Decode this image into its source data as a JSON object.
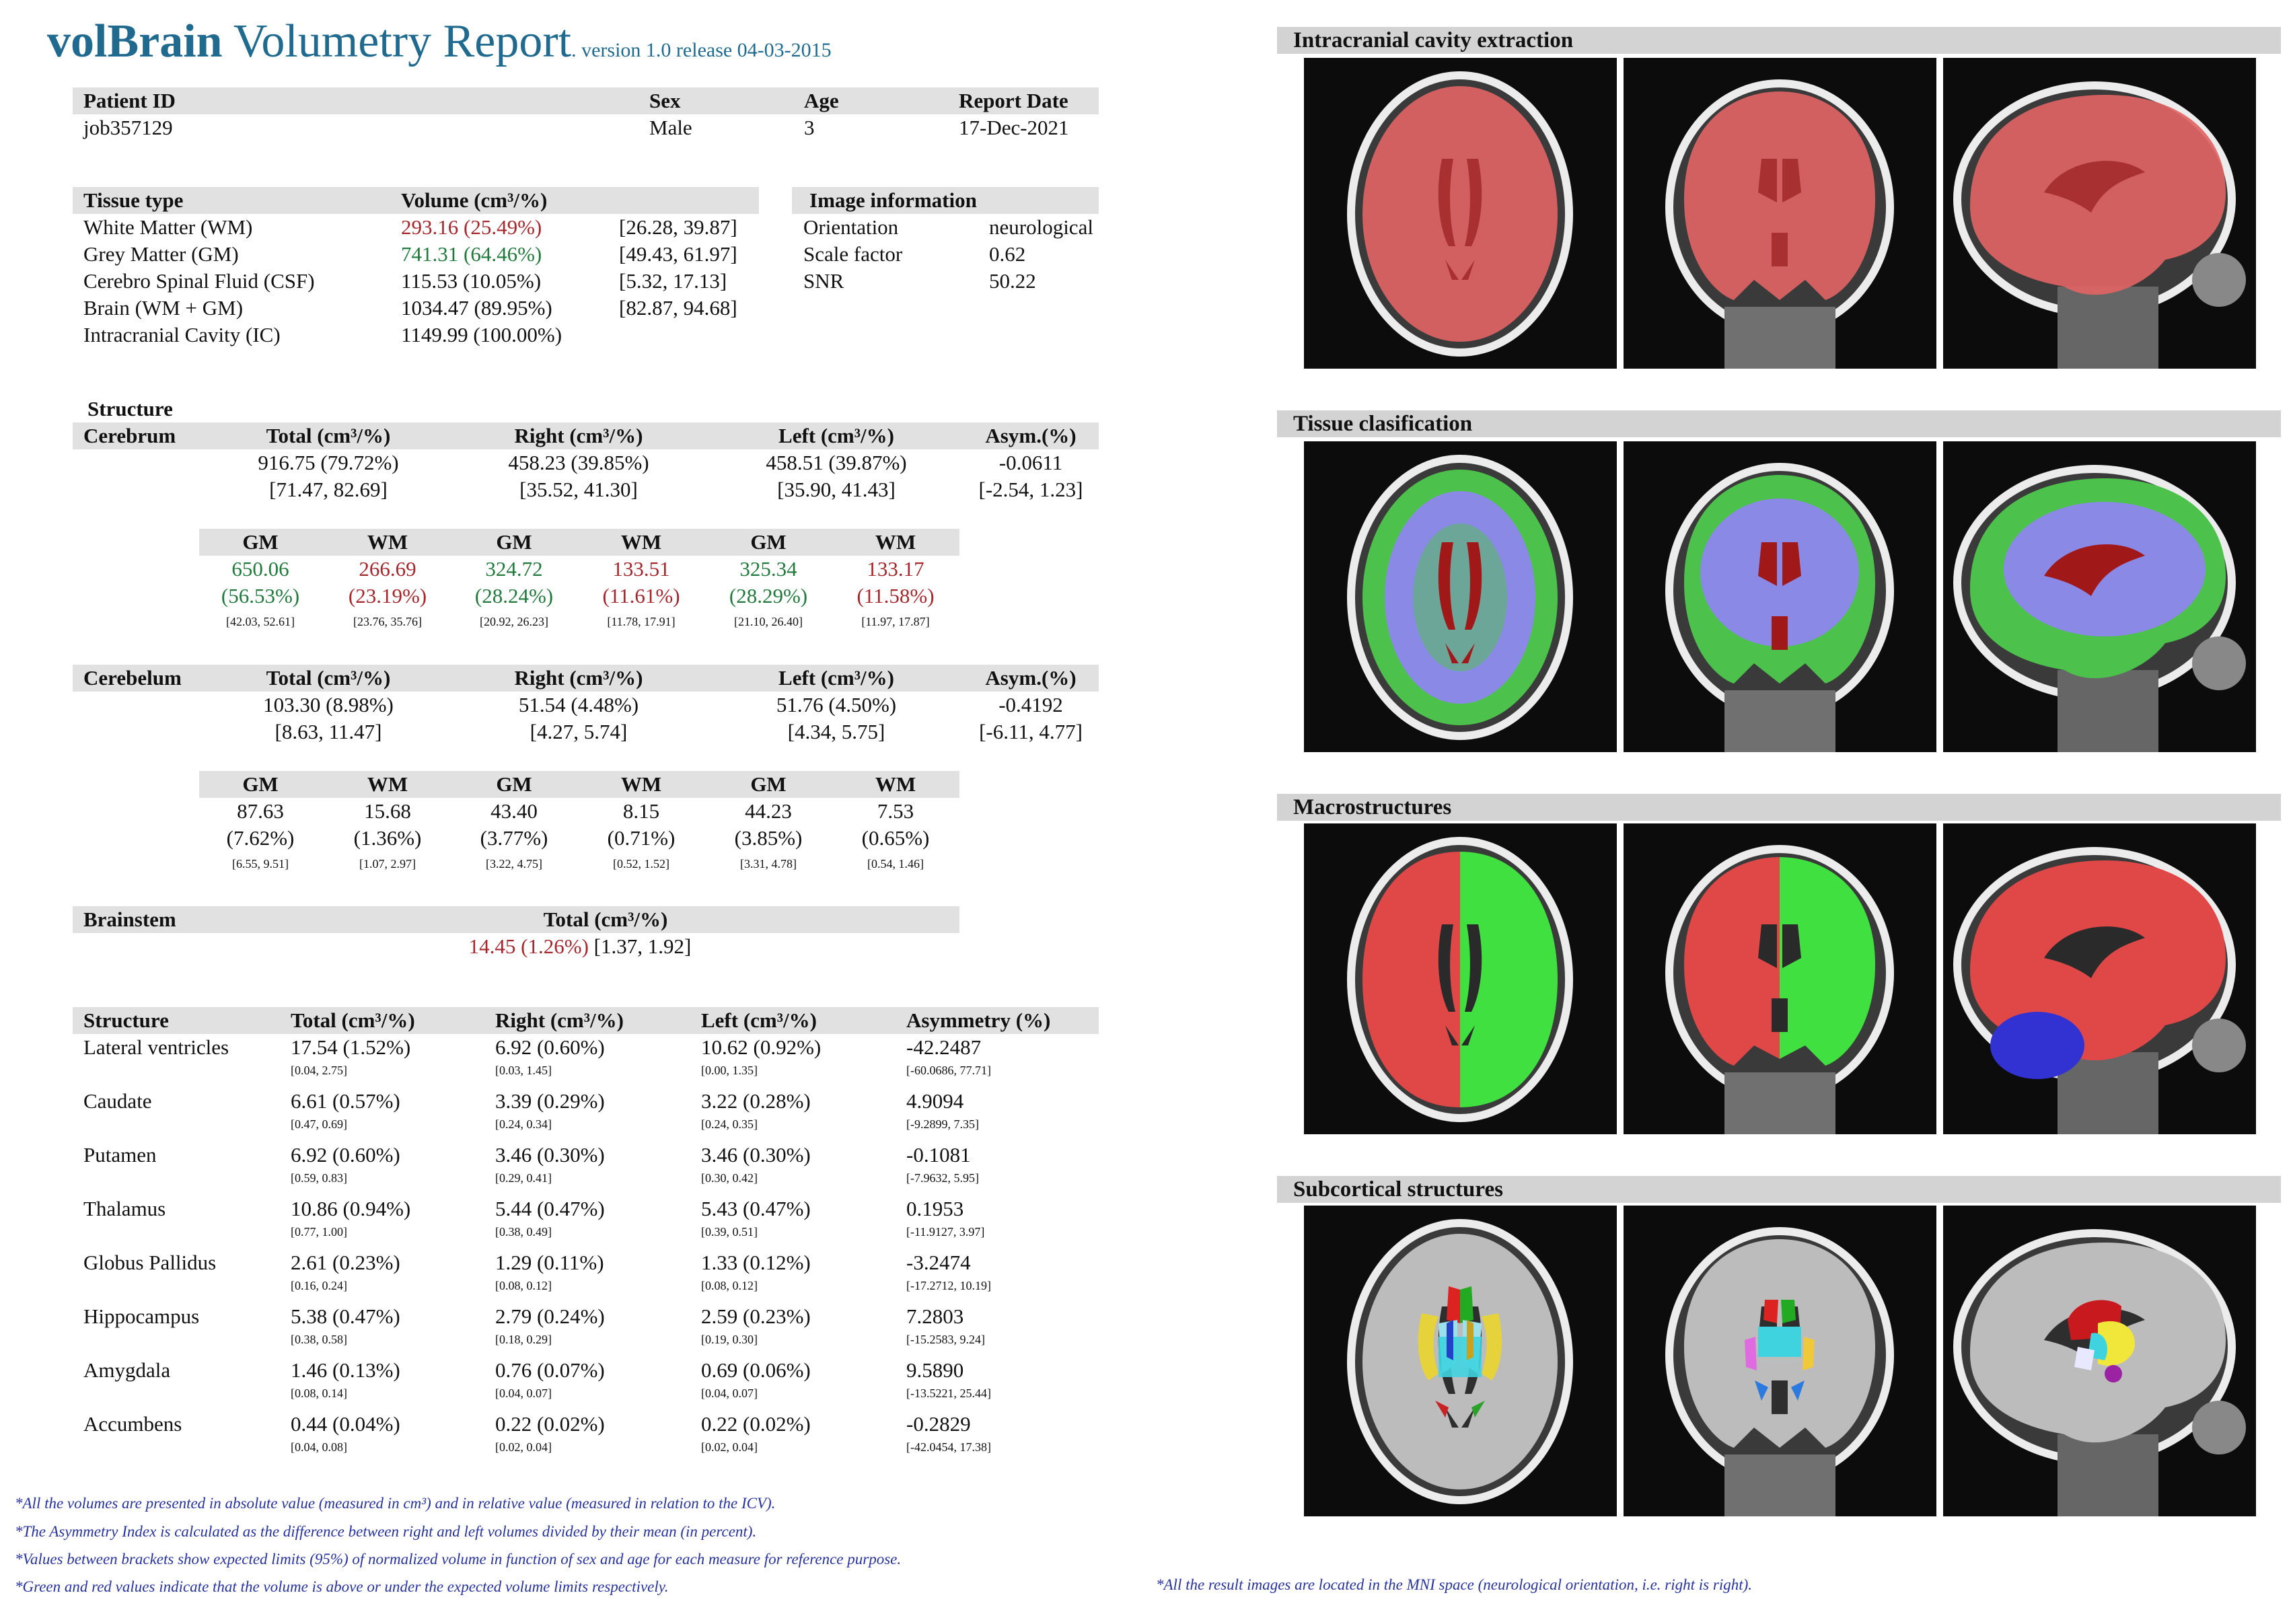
{
  "header": {
    "brand": "volBrain",
    "title": " Volumetry Report",
    "version": ". version 1.0 release 04-03-2015"
  },
  "patient": {
    "labels": [
      "Patient ID",
      "Sex",
      "Age",
      "Report Date"
    ],
    "values": [
      "job357129",
      "Male",
      "3",
      "17-Dec-2021"
    ]
  },
  "tissue": {
    "header_type": "Tissue type",
    "header_volume": "Volume (cm³/%)",
    "rows": [
      {
        "name": "White Matter (WM)",
        "value": "293.16 (25.49%)",
        "range": "[26.28, 39.87]",
        "status": "red"
      },
      {
        "name": "Grey Matter (GM)",
        "value": "741.31 (64.46%)",
        "range": "[49.43, 61.97]",
        "status": "green"
      },
      {
        "name": "Cerebro Spinal Fluid (CSF)",
        "value": "115.53 (10.05%)",
        "range": "[5.32, 17.13]",
        "status": "normal"
      },
      {
        "name": "Brain (WM + GM)",
        "value": "1034.47 (89.95%)",
        "range": "[82.87, 94.68]",
        "status": "normal"
      },
      {
        "name": "Intracranial Cavity (IC)",
        "value": "1149.99 (100.00%)",
        "range": "",
        "status": "normal"
      }
    ]
  },
  "image_info": {
    "header": "Image information",
    "rows": [
      {
        "label": "Orientation",
        "value": "neurological"
      },
      {
        "label": "Scale factor",
        "value": "0.62"
      },
      {
        "label": "SNR",
        "value": "50.22"
      }
    ]
  },
  "structure_label": "Structure",
  "cerebrum": {
    "name": "Cerebrum",
    "headers": [
      "Total (cm³/%)",
      "Right (cm³/%)",
      "Left (cm³/%)",
      "Asym.(%)"
    ],
    "values": [
      "916.75 (79.72%)",
      "458.23 (39.85%)",
      "458.51 (39.87%)",
      "-0.0611"
    ],
    "ranges": [
      "[71.47, 82.69]",
      "[35.52, 41.30]",
      "[35.90, 41.43]",
      "[-2.54, 1.23]"
    ],
    "sub": {
      "headers": [
        "GM",
        "WM",
        "GM",
        "WM",
        "GM",
        "WM"
      ],
      "values": [
        "650.06",
        "266.69",
        "324.72",
        "133.51",
        "325.34",
        "133.17"
      ],
      "pcts": [
        "(56.53%)",
        "(23.19%)",
        "(28.24%)",
        "(11.61%)",
        "(28.29%)",
        "(11.58%)"
      ],
      "ranges": [
        "[42.03, 52.61]",
        "[23.76, 35.76]",
        "[20.92, 26.23]",
        "[11.78, 17.91]",
        "[21.10, 26.40]",
        "[11.97, 17.87]"
      ],
      "status": [
        "green",
        "red",
        "green",
        "red",
        "green",
        "red"
      ]
    }
  },
  "cerebelum": {
    "name": "Cerebelum",
    "headers": [
      "Total (cm³/%)",
      "Right (cm³/%)",
      "Left (cm³/%)",
      "Asym.(%)"
    ],
    "values": [
      "103.30 (8.98%)",
      "51.54 (4.48%)",
      "51.76 (4.50%)",
      "-0.4192"
    ],
    "ranges": [
      "[8.63, 11.47]",
      "[4.27, 5.74]",
      "[4.34, 5.75]",
      "[-6.11, 4.77]"
    ],
    "sub": {
      "headers": [
        "GM",
        "WM",
        "GM",
        "WM",
        "GM",
        "WM"
      ],
      "values": [
        "87.63",
        "15.68",
        "43.40",
        "8.15",
        "44.23",
        "7.53"
      ],
      "pcts": [
        "(7.62%)",
        "(1.36%)",
        "(3.77%)",
        "(0.71%)",
        "(3.85%)",
        "(0.65%)"
      ],
      "ranges": [
        "[6.55, 9.51]",
        "[1.07, 2.97]",
        "[3.22, 4.75]",
        "[0.52, 1.52]",
        "[3.31, 4.78]",
        "[0.54, 1.46]"
      ]
    }
  },
  "brainstem": {
    "name": "Brainstem",
    "header": "Total (cm³/%)",
    "value": "14.45 (1.26%)",
    "range": " [1.37, 1.92]"
  },
  "subcortical": {
    "headers": [
      "Structure",
      "Total (cm³/%)",
      "Right (cm³/%)",
      "Left (cm³/%)",
      "Asymmetry (%)"
    ],
    "rows": [
      {
        "name": "Lateral ventricles",
        "total": "17.54 (1.52%)",
        "right": "6.92 (0.60%)",
        "left": "10.62 (0.92%)",
        "asym": "-42.2487",
        "r_total": "[0.04, 2.75]",
        "r_right": "[0.03, 1.45]",
        "r_left": "[0.00, 1.35]",
        "r_asym": "[-60.0686, 77.71]"
      },
      {
        "name": "Caudate",
        "total": "6.61 (0.57%)",
        "right": "3.39 (0.29%)",
        "left": "3.22 (0.28%)",
        "asym": "4.9094",
        "r_total": "[0.47, 0.69]",
        "r_right": "[0.24, 0.34]",
        "r_left": "[0.24, 0.35]",
        "r_asym": "[-9.2899, 7.35]"
      },
      {
        "name": "Putamen",
        "total": "6.92 (0.60%)",
        "right": "3.46 (0.30%)",
        "left": "3.46 (0.30%)",
        "asym": "-0.1081",
        "r_total": "[0.59, 0.83]",
        "r_right": "[0.29, 0.41]",
        "r_left": "[0.30, 0.42]",
        "r_asym": "[-7.9632, 5.95]"
      },
      {
        "name": "Thalamus",
        "total": "10.86 (0.94%)",
        "right": "5.44 (0.47%)",
        "left": "5.43 (0.47%)",
        "asym": "0.1953",
        "r_total": "[0.77, 1.00]",
        "r_right": "[0.38, 0.49]",
        "r_left": "[0.39, 0.51]",
        "r_asym": "[-11.9127, 3.97]"
      },
      {
        "name": "Globus Pallidus",
        "total": "2.61 (0.23%)",
        "right": "1.29 (0.11%)",
        "left": "1.33 (0.12%)",
        "asym": "-3.2474",
        "r_total": "[0.16, 0.24]",
        "r_right": "[0.08, 0.12]",
        "r_left": "[0.08, 0.12]",
        "r_asym": "[-17.2712, 10.19]"
      },
      {
        "name": "Hippocampus",
        "total": "5.38 (0.47%)",
        "right": "2.79 (0.24%)",
        "left": "2.59 (0.23%)",
        "asym": "7.2803",
        "r_total": "[0.38, 0.58]",
        "r_right": "[0.18, 0.29]",
        "r_left": "[0.19, 0.30]",
        "r_asym": "[-15.2583, 9.24]"
      },
      {
        "name": "Amygdala",
        "total": "1.46 (0.13%)",
        "right": "0.76 (0.07%)",
        "left": "0.69 (0.06%)",
        "asym": "9.5890",
        "r_total": "[0.08, 0.14]",
        "r_right": "[0.04, 0.07]",
        "r_left": "[0.04, 0.07]",
        "r_asym": "[-13.5221, 25.44]"
      },
      {
        "name": "Accumbens",
        "total": "0.44 (0.04%)",
        "right": "0.22 (0.02%)",
        "left": "0.22 (0.02%)",
        "asym": "-0.2829",
        "r_total": "[0.04, 0.08]",
        "r_right": "[0.02, 0.04]",
        "r_left": "[0.02, 0.04]",
        "r_asym": "[-42.0454, 17.38]"
      }
    ]
  },
  "footnotes": [
    "*All the volumes are presented in absolute value (measured in cm³) and in relative value (measured in relation to the ICV).",
    "*The Asymmetry Index is calculated as the difference between right and left volumes divided by their mean (in percent).",
    "*Values between brackets show expected limits (95%) of normalized volume in function of sex and age for each measure for reference purpose.",
    "*Green and red values indicate that the volume is above or under the expected volume limits respectively."
  ],
  "image_footnote": "*All the result images are located in the MNI space (neurological orientation, i.e. right is right).",
  "panels": [
    {
      "title": "Intracranial cavity extraction",
      "overlay": "ic"
    },
    {
      "title": "Tissue clasification",
      "overlay": "tissue"
    },
    {
      "title": "Macrostructures",
      "overlay": "macro"
    },
    {
      "title": "Subcortical structures",
      "overlay": "subcortical"
    }
  ],
  "colors": {
    "header": "#1f6a8e",
    "above": "#217a3c",
    "below": "#a4272c",
    "footnote": "#27339c",
    "ic_mask": "#e06464",
    "wm": "#8a8ae6",
    "gm": "#4cc24c",
    "csf": "#a01818",
    "right_hemisphere": "#e04848",
    "left_hemisphere": "#3fe03f",
    "cerebellum": "#3232d2"
  }
}
